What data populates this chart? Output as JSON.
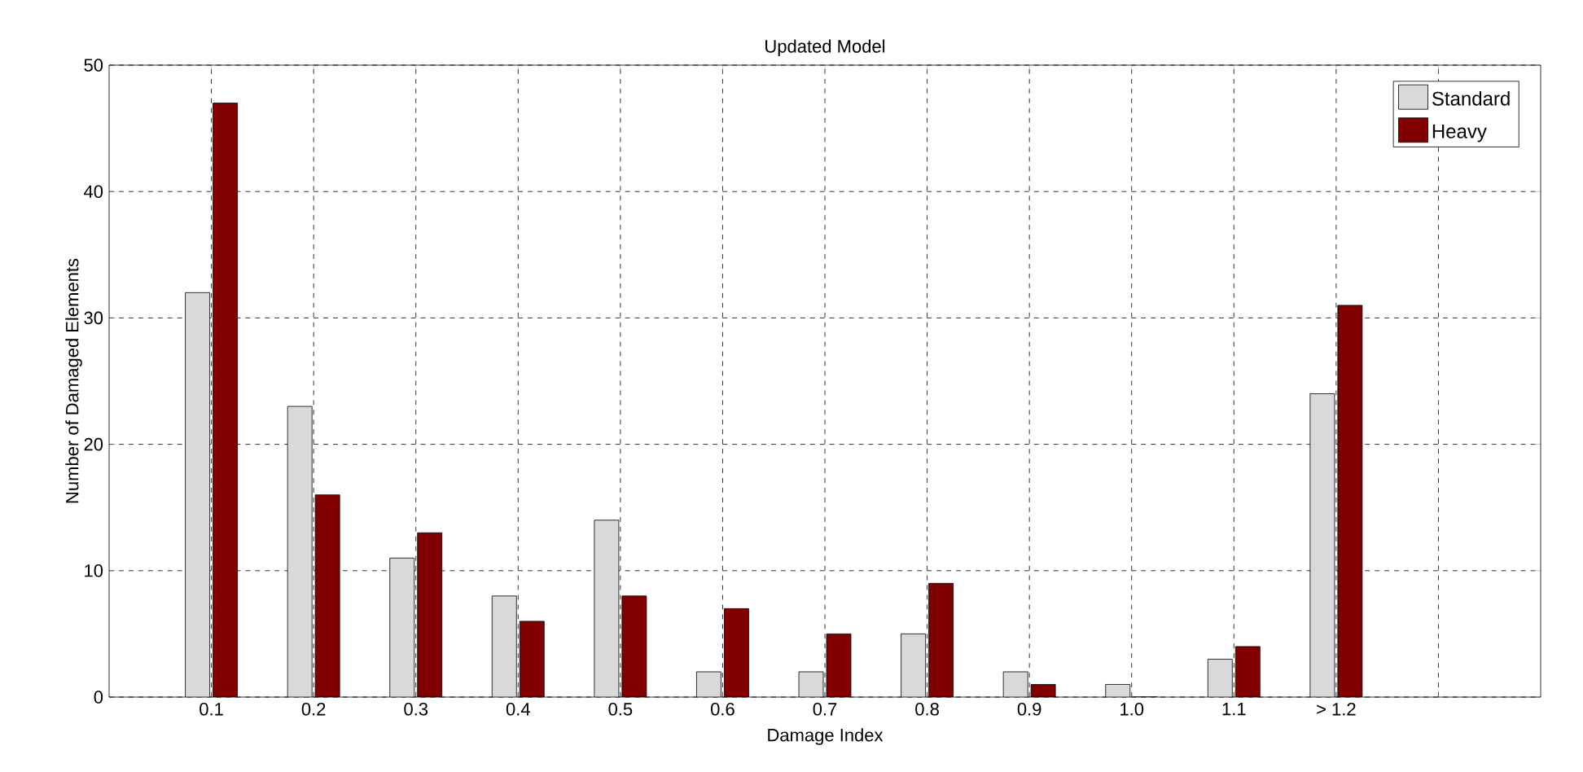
{
  "chart_data": {
    "type": "bar",
    "title": "Updated Model",
    "xlabel": "Damage Index",
    "ylabel": "Number of Damaged Elements",
    "categories": [
      "0.1",
      "0.2",
      "0.3",
      "0.4",
      "0.5",
      "0.6",
      "0.7",
      "0.8",
      "0.9",
      "1.0",
      "1.1",
      "> 1.2",
      null
    ],
    "series": [
      {
        "name": "Standard",
        "color": "#d9d9d9",
        "values": [
          32,
          23,
          11,
          8,
          14,
          2,
          2,
          5,
          2,
          1,
          3,
          24,
          null
        ]
      },
      {
        "name": "Heavy",
        "color": "#800000",
        "values": [
          47,
          16,
          13,
          6,
          8,
          7,
          5,
          9,
          1,
          0,
          4,
          31,
          null
        ]
      }
    ],
    "ylim": [
      0,
      50
    ],
    "yticks": [
      0,
      10,
      20,
      30,
      40,
      50
    ],
    "grid": true,
    "legend": "top right"
  }
}
